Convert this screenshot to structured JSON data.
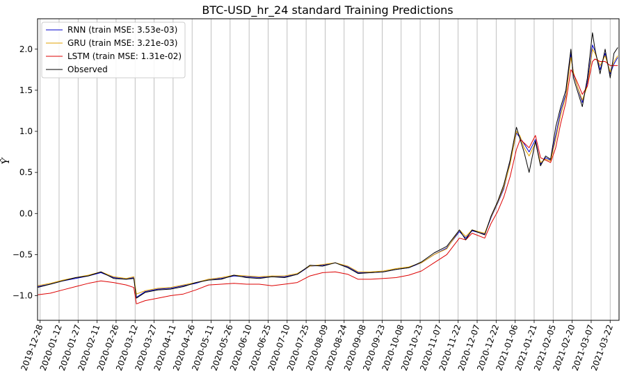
{
  "chart_data": {
    "type": "line",
    "title": "BTC-USD_hr_24 standard Training Predictions",
    "xlabel": "",
    "ylabel": "Ŷ",
    "xlim": [
      "2019-12-26",
      "2021-03-29"
    ],
    "ylim": [
      -1.3,
      2.37
    ],
    "grid": {
      "x": true,
      "y": false
    },
    "legend_position": "top-left",
    "x_ticks": [
      "2019-12-28",
      "2020-01-12",
      "2020-01-27",
      "2020-02-11",
      "2020-02-26",
      "2020-03-12",
      "2020-03-27",
      "2020-04-11",
      "2020-04-26",
      "2020-05-11",
      "2020-05-26",
      "2020-06-10",
      "2020-06-25",
      "2020-07-10",
      "2020-07-25",
      "2020-08-09",
      "2020-08-24",
      "2020-09-08",
      "2020-09-23",
      "2020-10-08",
      "2020-10-23",
      "2020-11-07",
      "2020-11-22",
      "2020-12-07",
      "2020-12-22",
      "2021-01-06",
      "2021-01-21",
      "2021-02-05",
      "2021-02-20",
      "2021-03-07",
      "2021-03-22"
    ],
    "y_ticks": [
      -1.0,
      -0.5,
      0.0,
      0.5,
      1.0,
      1.5,
      2.0
    ],
    "y_tick_labels": [
      "−1.0",
      "−0.5",
      "0.0",
      "0.5",
      "1.0",
      "1.5",
      "2.0"
    ],
    "dates": [
      "2019-12-26",
      "2020-01-05",
      "2020-01-15",
      "2020-01-25",
      "2020-02-04",
      "2020-02-14",
      "2020-02-24",
      "2020-03-05",
      "2020-03-11",
      "2020-03-13",
      "2020-03-20",
      "2020-03-30",
      "2020-04-09",
      "2020-04-19",
      "2020-04-29",
      "2020-05-09",
      "2020-05-19",
      "2020-05-29",
      "2020-06-08",
      "2020-06-18",
      "2020-06-28",
      "2020-07-08",
      "2020-07-18",
      "2020-07-28",
      "2020-08-07",
      "2020-08-17",
      "2020-08-27",
      "2020-09-04",
      "2020-09-14",
      "2020-09-24",
      "2020-10-04",
      "2020-10-14",
      "2020-10-24",
      "2020-11-03",
      "2020-11-13",
      "2020-11-23",
      "2020-11-28",
      "2020-12-03",
      "2020-12-13",
      "2020-12-18",
      "2020-12-23",
      "2020-12-28",
      "2021-01-02",
      "2021-01-07",
      "2021-01-10",
      "2021-01-13",
      "2021-01-17",
      "2021-01-22",
      "2021-01-26",
      "2021-01-30",
      "2021-02-03",
      "2021-02-07",
      "2021-02-11",
      "2021-02-15",
      "2021-02-19",
      "2021-02-21",
      "2021-02-24",
      "2021-02-28",
      "2021-03-04",
      "2021-03-08",
      "2021-03-10",
      "2021-03-14",
      "2021-03-18",
      "2021-03-22",
      "2021-03-25",
      "2021-03-28"
    ],
    "series": [
      {
        "name": "RNN (train MSE: 3.53e-03)",
        "color": "#0000cc",
        "values": [
          -0.89,
          -0.86,
          -0.82,
          -0.79,
          -0.76,
          -0.72,
          -0.78,
          -0.8,
          -0.78,
          -1.02,
          -0.95,
          -0.92,
          -0.91,
          -0.88,
          -0.85,
          -0.8,
          -0.79,
          -0.76,
          -0.77,
          -0.78,
          -0.77,
          -0.77,
          -0.74,
          -0.64,
          -0.63,
          -0.6,
          -0.65,
          -0.72,
          -0.72,
          -0.71,
          -0.68,
          -0.66,
          -0.6,
          -0.5,
          -0.42,
          -0.22,
          -0.3,
          -0.21,
          -0.25,
          -0.05,
          0.12,
          0.3,
          0.62,
          0.98,
          0.92,
          0.85,
          0.75,
          0.9,
          0.6,
          0.68,
          0.65,
          0.95,
          1.25,
          1.45,
          1.95,
          1.7,
          1.55,
          1.35,
          1.6,
          2.05,
          1.98,
          1.75,
          1.95,
          1.7,
          1.82,
          1.9
        ]
      },
      {
        "name": "GRU (train MSE: 3.21e-03)",
        "color": "#e0a000",
        "values": [
          -0.88,
          -0.85,
          -0.81,
          -0.78,
          -0.75,
          -0.71,
          -0.77,
          -0.79,
          -0.77,
          -0.98,
          -0.94,
          -0.91,
          -0.9,
          -0.87,
          -0.84,
          -0.8,
          -0.78,
          -0.75,
          -0.76,
          -0.77,
          -0.76,
          -0.76,
          -0.73,
          -0.64,
          -0.62,
          -0.6,
          -0.64,
          -0.71,
          -0.71,
          -0.7,
          -0.67,
          -0.65,
          -0.6,
          -0.5,
          -0.43,
          -0.2,
          -0.28,
          -0.2,
          -0.24,
          -0.04,
          0.13,
          0.32,
          0.6,
          1.0,
          0.94,
          0.8,
          0.7,
          0.86,
          0.62,
          0.66,
          0.64,
          0.9,
          1.2,
          1.42,
          1.9,
          1.72,
          1.55,
          1.38,
          1.55,
          2.0,
          1.95,
          1.8,
          1.92,
          1.72,
          1.85,
          1.92
        ]
      },
      {
        "name": "LSTM (train MSE: 1.31e-02)",
        "color": "#dd0000",
        "values": [
          -0.99,
          -0.97,
          -0.93,
          -0.89,
          -0.85,
          -0.82,
          -0.84,
          -0.87,
          -0.9,
          -1.1,
          -1.06,
          -1.03,
          -1.0,
          -0.98,
          -0.93,
          -0.87,
          -0.86,
          -0.85,
          -0.86,
          -0.86,
          -0.88,
          -0.86,
          -0.84,
          -0.76,
          -0.72,
          -0.71,
          -0.74,
          -0.8,
          -0.8,
          -0.79,
          -0.78,
          -0.75,
          -0.7,
          -0.6,
          -0.5,
          -0.3,
          -0.32,
          -0.24,
          -0.3,
          -0.12,
          0.02,
          0.2,
          0.45,
          0.78,
          0.9,
          0.86,
          0.8,
          0.95,
          0.68,
          0.65,
          0.62,
          0.8,
          1.1,
          1.35,
          1.75,
          1.7,
          1.6,
          1.45,
          1.55,
          1.85,
          1.88,
          1.85,
          1.85,
          1.8,
          1.8,
          1.8
        ]
      },
      {
        "name": "Observed",
        "color": "#000000",
        "values": [
          -0.9,
          -0.86,
          -0.82,
          -0.78,
          -0.76,
          -0.71,
          -0.79,
          -0.8,
          -0.79,
          -1.03,
          -0.96,
          -0.93,
          -0.92,
          -0.89,
          -0.84,
          -0.81,
          -0.8,
          -0.75,
          -0.78,
          -0.79,
          -0.77,
          -0.78,
          -0.74,
          -0.63,
          -0.64,
          -0.6,
          -0.66,
          -0.73,
          -0.72,
          -0.71,
          -0.68,
          -0.66,
          -0.59,
          -0.48,
          -0.4,
          -0.2,
          -0.32,
          -0.2,
          -0.26,
          -0.03,
          0.14,
          0.35,
          0.65,
          1.05,
          0.9,
          0.75,
          0.5,
          0.88,
          0.58,
          0.7,
          0.66,
          1.05,
          1.3,
          1.5,
          2.0,
          1.65,
          1.5,
          1.3,
          1.65,
          2.2,
          2.0,
          1.7,
          2.0,
          1.65,
          1.95,
          2.02
        ]
      }
    ]
  }
}
